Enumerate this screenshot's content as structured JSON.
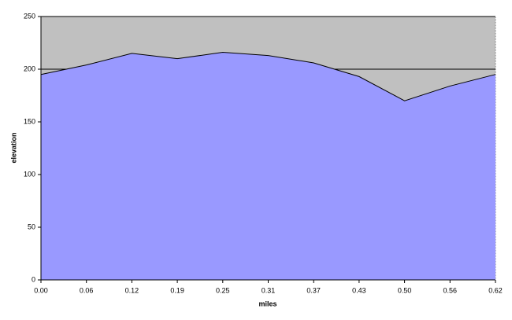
{
  "chart_data": {
    "type": "area",
    "x_label": "miles",
    "y_label": "elevation",
    "categories": [
      "0.00",
      "0.06",
      "0.12",
      "0.19",
      "0.25",
      "0.31",
      "0.37",
      "0.43",
      "0.50",
      "0.56",
      "0.62"
    ],
    "values": [
      195,
      204,
      215,
      210,
      216,
      213,
      206,
      193,
      170,
      184,
      195
    ],
    "color": "#9999ff",
    "background": "#c0c0c0",
    "ylim": [
      0,
      250
    ],
    "yticks": [
      0,
      50,
      100,
      150,
      200,
      250
    ],
    "grid": true
  }
}
